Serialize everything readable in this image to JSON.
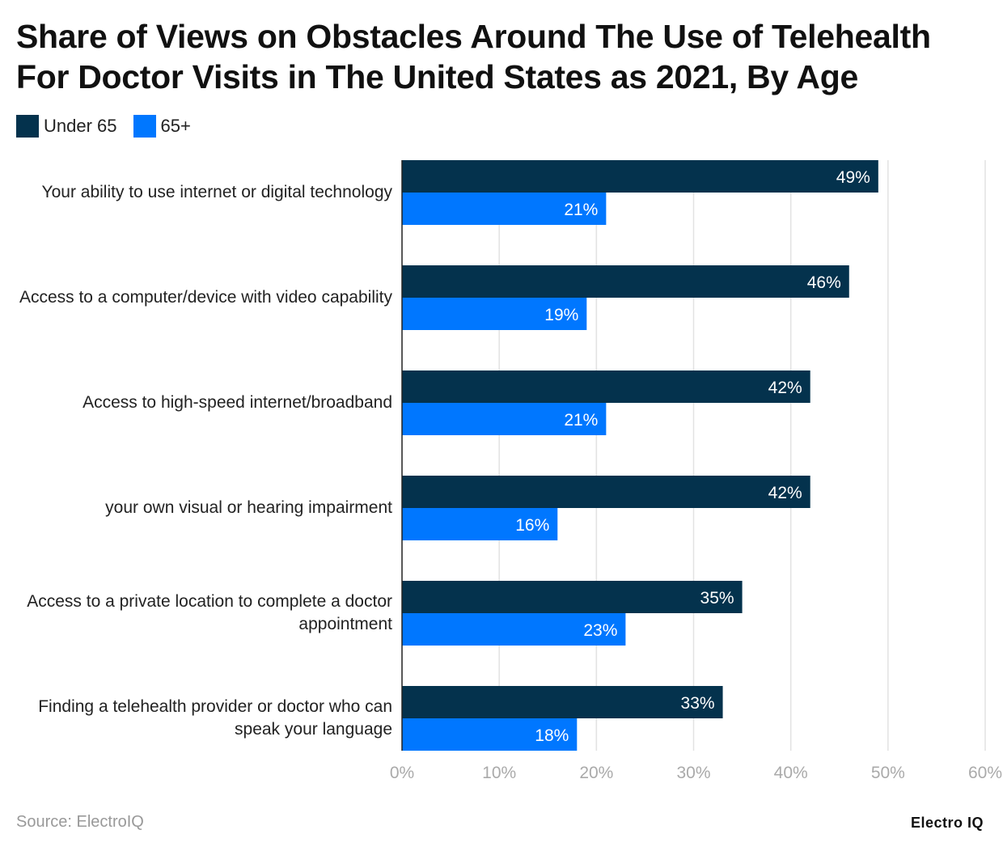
{
  "chart_data": {
    "type": "bar",
    "orientation": "horizontal",
    "title": "Share of Views on Obstacles Around The Use of Telehealth For Doctor Visits in The United States as 2021, By Age",
    "categories": [
      "Your ability to use internet or digital technology",
      "Access to a computer/device with video capability",
      "Access to high-speed internet/broadband",
      "your own visual or hearing impairment",
      "Access to a private location to complete a doctor appointment",
      "Finding a telehealth provider or doctor who can speak your language"
    ],
    "series": [
      {
        "name": "Under 65",
        "color": "#04324d",
        "values": [
          49,
          46,
          42,
          42,
          35,
          33
        ]
      },
      {
        "name": "65+",
        "color": "#0077ff",
        "values": [
          21,
          19,
          21,
          16,
          23,
          18
        ]
      }
    ],
    "xlim": [
      0,
      60
    ],
    "xticks": [
      "0%",
      "10%",
      "20%",
      "30%",
      "40%",
      "50%",
      "60%"
    ],
    "value_suffix": "%",
    "grid": true,
    "legend": "top-left"
  },
  "source": "Source: ElectroIQ",
  "logo": "Electro IQ"
}
